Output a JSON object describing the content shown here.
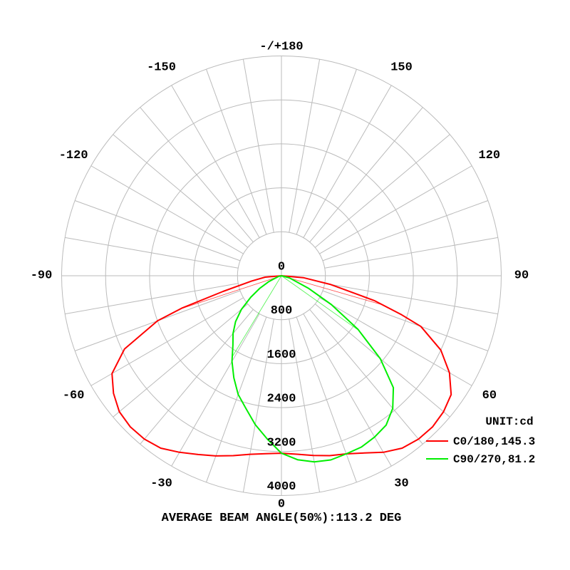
{
  "chart_data": {
    "type": "polar",
    "unit_label": "UNIT:cd",
    "footer": "AVERAGE BEAM ANGLE(50%):113.2 DEG",
    "radial_range": [
      0,
      4000
    ],
    "radial_ticks": [
      "0",
      "800",
      "1600",
      "2400",
      "3200",
      "4000"
    ],
    "radial_tick_values": [
      0,
      800,
      1600,
      2400,
      3200,
      4000
    ],
    "angle_ticks": [
      {
        "angle": 0,
        "label": "0"
      },
      {
        "angle": 30,
        "label": "30"
      },
      {
        "angle": 60,
        "label": "60"
      },
      {
        "angle": 90,
        "label": "90"
      },
      {
        "angle": 120,
        "label": "120"
      },
      {
        "angle": 150,
        "label": "150"
      },
      {
        "angle": 180,
        "label": "-/+180"
      },
      {
        "angle": -150,
        "label": "-150"
      },
      {
        "angle": -120,
        "label": "-120"
      },
      {
        "angle": -90,
        "label": "-90"
      },
      {
        "angle": -60,
        "label": "-60"
      },
      {
        "angle": -30,
        "label": "-30"
      }
    ],
    "grid": true,
    "grid_spoke_step_deg": 10,
    "legend_position": "bottom-right",
    "series": [
      {
        "name": "C0/180,145.3",
        "color": "#ff0000",
        "beam_angle": 145.3,
        "angles": [
          -90,
          -85,
          -80,
          -75,
          -72,
          -70,
          -65,
          -60,
          -55,
          -50,
          -45,
          -40,
          -35,
          -30,
          -25,
          -20,
          -15,
          -10,
          -5,
          0,
          5,
          10,
          15,
          20,
          25,
          30,
          35,
          40,
          45,
          50,
          55,
          60,
          65,
          70,
          72,
          75,
          80,
          85,
          90
        ],
        "values": [
          0,
          300,
          550,
          1100,
          1900,
          2400,
          3150,
          3560,
          3730,
          3850,
          3890,
          3880,
          3830,
          3710,
          3590,
          3490,
          3390,
          3300,
          3250,
          3230,
          3260,
          3320,
          3390,
          3450,
          3560,
          3710,
          3830,
          3880,
          3890,
          3850,
          3770,
          3530,
          3200,
          2700,
          2300,
          1750,
          900,
          400,
          0
        ]
      },
      {
        "name": "C90/270,81.2",
        "color": "#00ee00",
        "beam_angle": 81.2,
        "angles": [
          -90,
          -75,
          -65,
          -60,
          -55,
          -50,
          -45,
          -40,
          -35,
          -30,
          -25,
          -20,
          -15,
          -10,
          -5,
          0,
          5,
          10,
          15,
          20,
          25,
          30,
          35,
          40,
          45,
          50,
          55,
          60,
          65,
          75,
          90
        ],
        "values": [
          0,
          60,
          250,
          450,
          680,
          950,
          1180,
          1370,
          1540,
          1800,
          2050,
          2300,
          2500,
          2750,
          2980,
          3230,
          3360,
          3440,
          3470,
          3450,
          3440,
          3390,
          3320,
          3150,
          2880,
          2350,
          1700,
          1050,
          550,
          150,
          0
        ]
      }
    ]
  }
}
